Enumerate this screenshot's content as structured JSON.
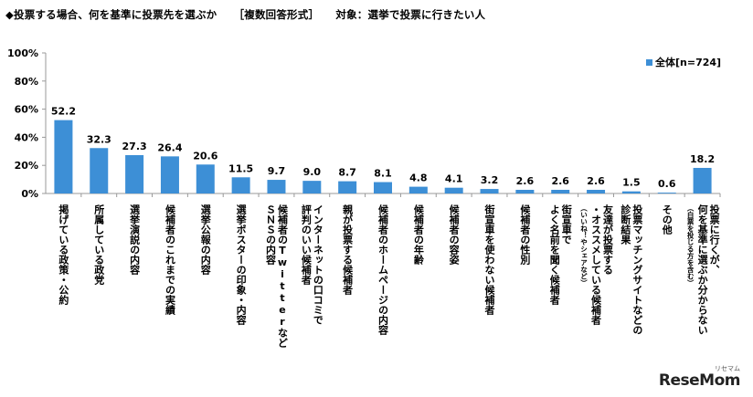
{
  "header": {
    "title": "◆投票する場合、何を基準に投票先を選ぶか",
    "format": "［複数回答形式］",
    "target": "対象：選挙で投票に行きたい人"
  },
  "colors": {
    "bar": "#3d8fd6",
    "axis": "#999999",
    "grid": "#d0d0d0"
  },
  "chart_data": {
    "type": "bar",
    "title": "",
    "xlabel": "",
    "ylabel": "",
    "ylim": [
      0,
      100
    ],
    "yticks": [
      0,
      20,
      40,
      60,
      80,
      100
    ],
    "ytick_labels": [
      "0%",
      "20%",
      "40%",
      "60%",
      "80%",
      "100%"
    ],
    "grid": false,
    "legend_position": "top-right",
    "series": [
      {
        "name": "全体[n=724]",
        "values": [
          52.2,
          32.3,
          27.3,
          26.4,
          20.6,
          11.5,
          9.7,
          9.0,
          8.7,
          8.1,
          4.8,
          4.1,
          3.2,
          2.6,
          2.6,
          2.6,
          1.5,
          0.6,
          18.2
        ],
        "value_labels": [
          "52.2",
          "32.3",
          "27.3",
          "26.4",
          "20.6",
          "11.5",
          "9.7",
          "9.0",
          "8.7",
          "8.1",
          "4.8",
          "4.1",
          "3.2",
          "2.6",
          "2.6",
          "2.6",
          "1.5",
          "0.6",
          "18.2"
        ]
      }
    ],
    "categories": [
      {
        "lines": [
          "掲げている政策・公約"
        ]
      },
      {
        "lines": [
          "所属している政党"
        ]
      },
      {
        "lines": [
          "選挙演説の内容"
        ]
      },
      {
        "lines": [
          "候補者のこれまでの実績"
        ]
      },
      {
        "lines": [
          "選挙公報の内容"
        ]
      },
      {
        "lines": [
          "選挙ポスターの印象・内容"
        ]
      },
      {
        "lines": [
          "候補者のTwitterなど",
          "ＳＮＳの内容"
        ]
      },
      {
        "lines": [
          "インターネットの口コミで",
          "評判のいい候補者"
        ]
      },
      {
        "lines": [
          "親が投票する候補者"
        ]
      },
      {
        "lines": [
          "候補者のホームページの内容"
        ]
      },
      {
        "lines": [
          "候補者の年齢"
        ]
      },
      {
        "lines": [
          "候補者の容姿"
        ]
      },
      {
        "lines": [
          "街宣車を使わない候補者"
        ]
      },
      {
        "lines": [
          "候補者の性別"
        ]
      },
      {
        "lines": [
          "街宣車で",
          "よく名前を聞く候補者"
        ]
      },
      {
        "lines": [
          "友達が投票する",
          "・オススメしている候補者"
        ],
        "sub": "（いいね！やシェアなど）"
      },
      {
        "lines": [
          "投票マッチングサイトなどの",
          "診断結果"
        ]
      },
      {
        "lines": [
          "その他"
        ]
      },
      {
        "lines": [
          "投票に行くが、",
          "何を基準に選ぶか分からない"
        ],
        "sub": "（白票を投じる方を含む）"
      }
    ]
  },
  "watermark": {
    "brand": "ReseMom",
    "sub": "リセマム"
  }
}
